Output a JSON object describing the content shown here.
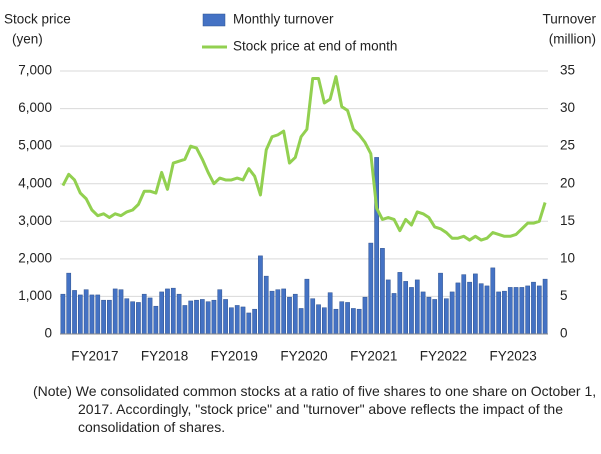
{
  "chart_data": {
    "type": "bar_line",
    "y_label": [
      "Stock price",
      "(yen)"
    ],
    "y2_label": [
      "Turnover",
      "(million)"
    ],
    "categories": [
      null,
      null,
      null,
      null,
      null,
      "FY2017",
      null,
      null,
      null,
      null,
      null,
      null,
      null,
      null,
      null,
      null,
      null,
      "FY2018",
      null,
      null,
      null,
      null,
      null,
      null,
      null,
      null,
      null,
      null,
      null,
      "FY2019",
      null,
      null,
      null,
      null,
      null,
      null,
      null,
      null,
      null,
      null,
      null,
      "FY2020",
      null,
      null,
      null,
      null,
      null,
      null,
      null,
      null,
      null,
      null,
      null,
      "FY2021",
      null,
      null,
      null,
      null,
      null,
      null,
      null,
      null,
      null,
      null,
      null,
      "FY2022",
      null,
      null,
      null,
      null,
      null,
      null,
      null,
      null,
      null,
      null,
      null,
      "FY2023",
      null,
      null,
      null,
      null,
      null,
      null
    ],
    "series": [
      {
        "name": "Monthly turnover",
        "type": "bar",
        "axis": "y2",
        "color": "#4472c4",
        "values": [
          5.3,
          8.1,
          5.8,
          5.2,
          5.9,
          5.2,
          5.2,
          4.5,
          4.5,
          6.0,
          5.9,
          4.7,
          4.3,
          4.2,
          5.3,
          4.8,
          3.7,
          5.6,
          6.0,
          6.1,
          5.3,
          3.8,
          4.4,
          4.5,
          4.6,
          4.3,
          4.5,
          5.9,
          4.6,
          3.5,
          3.8,
          3.6,
          2.8,
          3.3,
          10.4,
          7.7,
          5.7,
          5.9,
          6.0,
          4.9,
          5.3,
          3.4,
          7.3,
          4.7,
          3.9,
          3.5,
          5.5,
          3.3,
          4.3,
          4.2,
          3.4,
          3.3,
          4.9,
          12.1,
          23.5,
          11.4,
          7.2,
          5.4,
          8.2,
          7.0,
          6.2,
          7.2,
          5.6,
          4.9,
          4.6,
          8.1,
          4.7,
          5.6,
          6.8,
          7.9,
          6.9,
          8.0,
          6.7,
          6.4,
          8.8,
          5.6,
          5.7,
          6.2,
          6.2,
          6.2,
          6.4,
          6.9,
          6.4,
          7.3
        ]
      },
      {
        "name": "Stock price at end of month",
        "type": "line",
        "axis": "y",
        "color": "#92d050",
        "values": [
          3950,
          4250,
          4100,
          3750,
          3600,
          3300,
          3150,
          3200,
          3100,
          3200,
          3150,
          3250,
          3300,
          3450,
          3800,
          3800,
          3750,
          4300,
          3850,
          4550,
          4600,
          4650,
          5000,
          4950,
          4650,
          4300,
          4000,
          4150,
          4100,
          4100,
          4150,
          4100,
          4400,
          4200,
          3700,
          4900,
          5250,
          5300,
          5400,
          4550,
          4700,
          5250,
          5450,
          6800,
          6800,
          6150,
          6250,
          6850,
          6050,
          5950,
          5450,
          5300,
          5100,
          4800,
          3350,
          3050,
          3100,
          3050,
          2750,
          3050,
          2900,
          3250,
          3200,
          3100,
          2850,
          2800,
          2700,
          2550,
          2550,
          2600,
          2500,
          2600,
          2500,
          2550,
          2700,
          2650,
          2600,
          2600,
          2650,
          2800,
          2950,
          2950,
          3000,
          3500
        ]
      }
    ],
    "ylim": [
      0,
      7000
    ],
    "yticks": [
      0,
      {
        "value": 1000,
        "label": "1,000"
      },
      {
        "value": 2000,
        "label": "2,000"
      },
      {
        "value": 3000,
        "label": "3,000"
      },
      {
        "value": 4000,
        "label": "4,000"
      },
      {
        "value": 5000,
        "label": "5,000"
      },
      {
        "value": 6000,
        "label": "6,000"
      },
      {
        "value": 7000,
        "label": "7,000"
      }
    ],
    "y2lim": [
      0,
      35
    ],
    "y2ticks": [
      0,
      5,
      10,
      15,
      20,
      25,
      30,
      35
    ],
    "grid": true,
    "note": "(Note) We consolidated common stocks at a ratio of five shares to one share on October 1, 2017. Accordingly, \"stock price\" and \"turnover\" above reflects the impact of the consolidation of shares."
  }
}
